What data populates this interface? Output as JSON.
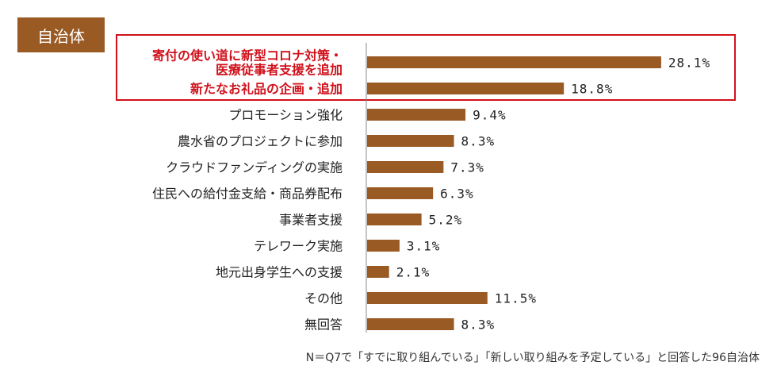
{
  "tag_label": "自治体",
  "footnote": "N＝Q7で「すでに取り組んでいる」「新しい取り組みを予定している」と回答した96自治体",
  "colors": {
    "bar": "#9a5a24",
    "highlight": "#d0111b",
    "label": "#222222",
    "axis": "#888888"
  },
  "chart_data": {
    "type": "bar",
    "orientation": "horizontal",
    "value_suffix": "%",
    "xlim": [
      0,
      40
    ],
    "categories": [
      [
        "寄付の使い道に新型コロナ対策・",
        "医療従事者支援を追加"
      ],
      [
        "新たなお礼品の企画・追加"
      ],
      [
        "プロモーション強化"
      ],
      [
        "農水省のプロジェクトに参加"
      ],
      [
        "クラウドファンディングの実施"
      ],
      [
        "住民への給付金支給・商品券配布"
      ],
      [
        "事業者支援"
      ],
      [
        "テレワーク実施"
      ],
      [
        "地元出身学生への支援"
      ],
      [
        "その他"
      ],
      [
        "無回答"
      ]
    ],
    "values": [
      28.1,
      18.8,
      9.4,
      8.3,
      7.3,
      6.3,
      5.2,
      3.1,
      2.1,
      11.5,
      8.3
    ],
    "value_labels": [
      "28.1%",
      "18.8%",
      "9.4%",
      "8.3%",
      "7.3%",
      "6.3%",
      "5.2%",
      "3.1%",
      "2.1%",
      "11.5%",
      "8.3%"
    ],
    "highlighted": [
      true,
      true,
      false,
      false,
      false,
      false,
      false,
      false,
      false,
      false,
      false
    ]
  }
}
